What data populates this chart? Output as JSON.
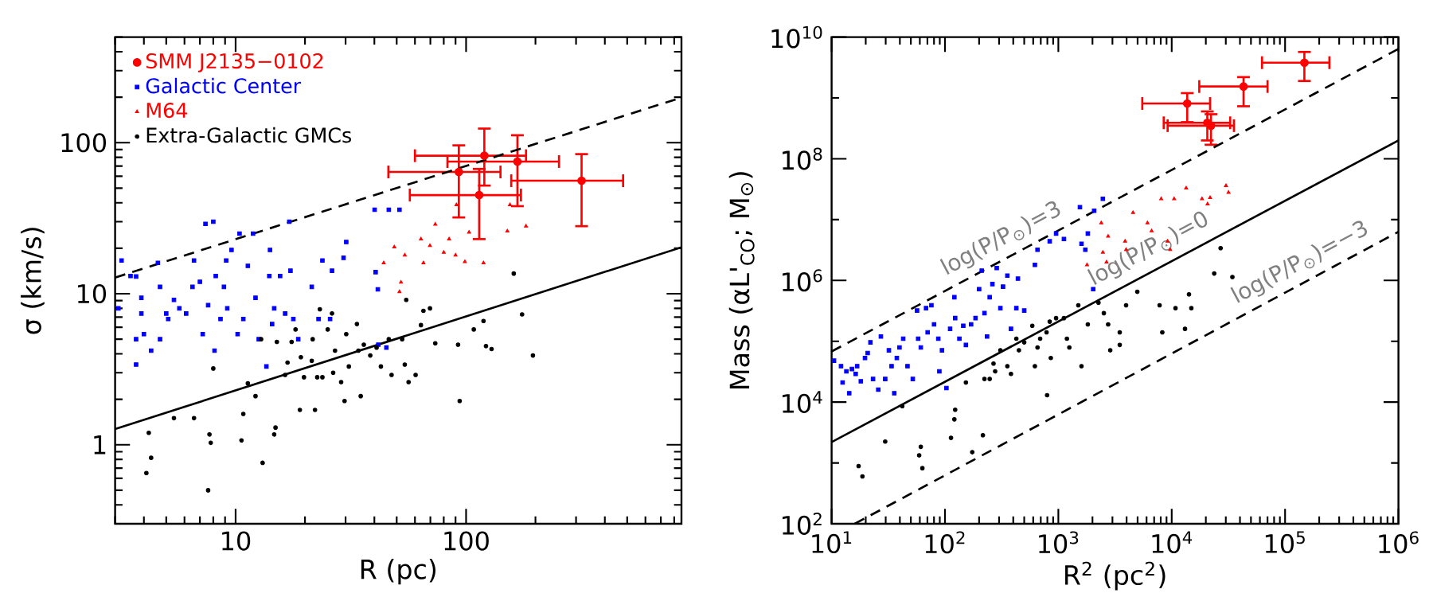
{
  "chart_data": [
    {
      "type": "scatter",
      "xlabel": "R (pc)",
      "ylabel": "σ (km/s)",
      "log": "xy",
      "xlim": [
        3,
        860
      ],
      "ylim": [
        0.3,
        500
      ],
      "xticks": [
        {
          "value": 3,
          "label": null
        },
        {
          "value": 4,
          "label": null
        },
        {
          "value": 5,
          "label": null
        },
        {
          "value": 6,
          "label": null
        },
        {
          "value": 7,
          "label": null
        },
        {
          "value": 8,
          "label": null
        },
        {
          "value": 9,
          "label": null
        },
        10,
        {
          "value": 20,
          "label": null
        },
        {
          "value": 30,
          "label": null
        },
        {
          "value": 40,
          "label": null
        },
        {
          "value": 50,
          "label": null
        },
        {
          "value": 60,
          "label": null
        },
        {
          "value": 70,
          "label": null
        },
        {
          "value": 80,
          "label": null
        },
        {
          "value": 90,
          "label": null
        },
        100,
        {
          "value": 200,
          "label": null
        },
        {
          "value": 300,
          "label": null
        },
        {
          "value": 400,
          "label": null
        },
        {
          "value": 500,
          "label": null
        },
        {
          "value": 600,
          "label": null
        },
        {
          "value": 700,
          "label": null
        },
        {
          "value": 800,
          "label": null
        }
      ],
      "yticks": [
        {
          "value": 0.3,
          "label": null
        },
        {
          "value": 0.4,
          "label": null
        },
        {
          "value": 0.5,
          "label": null
        },
        {
          "value": 0.6,
          "label": null
        },
        {
          "value": 0.7,
          "label": null
        },
        {
          "value": 0.8,
          "label": null
        },
        {
          "value": 0.9,
          "label": null
        },
        1,
        {
          "value": 2,
          "label": null
        },
        {
          "value": 3,
          "label": null
        },
        {
          "value": 4,
          "label": null
        },
        {
          "value": 5,
          "label": null
        },
        {
          "value": 6,
          "label": null
        },
        {
          "value": 7,
          "label": null
        },
        {
          "value": 8,
          "label": null
        },
        {
          "value": 9,
          "label": null
        },
        10,
        {
          "value": 20,
          "label": null
        },
        {
          "value": 30,
          "label": null
        },
        {
          "value": 40,
          "label": null
        },
        {
          "value": 50,
          "label": null
        },
        {
          "value": 60,
          "label": null
        },
        {
          "value": 70,
          "label": null
        },
        {
          "value": 80,
          "label": null
        },
        {
          "value": 90,
          "label": null
        },
        100,
        {
          "value": 200,
          "label": null
        },
        {
          "value": 300,
          "label": null
        },
        {
          "value": 400,
          "label": null
        },
        {
          "value": 500,
          "label": null
        }
      ],
      "legend": "top left",
      "series": [
        {
          "name": "SMM J2135−0102",
          "color": "#ff0000",
          "marker": "circle",
          "x": [
            93,
            120,
            167,
            114,
            317
          ],
          "values": [
            64,
            82,
            75,
            45,
            56
          ],
          "xerrors": [
            [
              46,
              141
            ],
            [
              60,
              182
            ],
            [
              83,
              253
            ],
            [
              57,
              173
            ],
            [
              157,
              480
            ]
          ],
          "errors": [
            [
              32,
              96
            ],
            [
              52,
              124
            ],
            [
              38,
              112
            ],
            [
              23,
              67
            ],
            [
              28,
              84
            ]
          ]
        },
        {
          "name": "Galactic Center",
          "color": "#0000ff",
          "marker": "square",
          "x": [
            3.2,
            3.1,
            3.5,
            3.7,
            3.9,
            3.9,
            3.7,
            3.7,
            4.0,
            4.3,
            4.6,
            4.7,
            4.7,
            5.0,
            5.1,
            5.4,
            5.7,
            6.1,
            6.5,
            6.6,
            7.0,
            7.2,
            7.4,
            7.6,
            8.0,
            8.1,
            8.2,
            8.6,
            8.9,
            9.1,
            9.2,
            9.6,
            10.2,
            10.4,
            10.8,
            11.3,
            11.9,
            12.2,
            12.6,
            13.6,
            14,
            14.1,
            14.4,
            14.7,
            15.6,
            16.4,
            17.1,
            17.3,
            17.8,
            18.7,
            21.4,
            22.9,
            23.8,
            25.7,
            26.2,
            30.2,
            29.4,
            40.1,
            40.5,
            41.4,
            46.2,
            51.4,
            41.6,
            45.1
          ],
          "values": [
            16.6,
            8.0,
            13.1,
            13,
            9.4,
            7.4,
            5.0,
            3.4,
            5.4,
            4.2,
            16,
            11.1,
            5.0,
            7.4,
            6.8,
            9.1,
            8.0,
            7.4,
            11.1,
            16.6,
            12,
            5.4,
            29,
            8.4,
            30,
            4.2,
            13.1,
            6.8,
            11.1,
            16.6,
            8.0,
            19.5,
            5.4,
            25,
            6.8,
            15.3,
            25,
            9.4,
            5.0,
            3.3,
            13.1,
            19.5,
            6.3,
            8.0,
            13.1,
            7.4,
            30,
            14.2,
            6.8,
            5.0,
            11.1,
            6.8,
            16.6,
            6.8,
            14.2,
            22,
            17.3,
            36,
            13.9,
            10.7,
            36,
            36,
            4.6,
            4.4
          ]
        },
        {
          "name": "M64",
          "color": "#ff0000",
          "marker": "triangle",
          "x": [
            43.9,
            48.8,
            52.2,
            51.4,
            54.2,
            63.7,
            65.3,
            69.7,
            73.5,
            80,
            84.4,
            90,
            90.8,
            98.8,
            103,
            119,
            151,
            155,
            166,
            182
          ],
          "values": [
            16,
            20.4,
            11.9,
            10.3,
            18,
            23,
            16,
            20.8,
            28.8,
            18.8,
            23,
            18,
            38.8,
            16.3,
            25.5,
            16,
            26,
            38.8,
            null,
            28
          ]
        },
        {
          "name": "Extra-Galactic GMCs",
          "color": "#000000",
          "marker": "circle",
          "x": [
            4.1,
            4.2,
            4.3,
            5.4,
            6.6,
            7.6,
            7.7,
            7.8,
            8.0,
            10.6,
            10.8,
            11.3,
            12.2,
            12.9,
            13.1,
            14.7,
            14.9,
            15.1,
            16.4,
            16.8,
            17.5,
            18.2,
            19.2,
            19,
            19.8,
            21.4,
            21.6,
            22.1,
            22.6,
            23.2,
            23.8,
            25.1,
            26.2,
            26.5,
            27,
            28.7,
            29.7,
            30.2,
            31,
            33.6,
            34.1,
            34.9,
            36,
            38.4,
            40.9,
            42.7,
            46.2,
            47.5,
            52.8,
            54.2,
            56.3,
            60.4,
            63.7,
            65.3,
            69.7,
            73.5,
            92.3,
            93.8,
            108,
            119,
            122,
            129,
            161,
            175,
            195,
            55
          ],
          "values": [
            0.65,
            1.2,
            0.82,
            1.5,
            1.5,
            0.5,
            1.17,
            1.03,
            3.2,
            1.07,
            1.6,
            2.55,
            2.1,
            5.0,
            0.76,
            1.17,
            1.3,
            4.8,
            2.9,
            3.5,
            4.8,
            5.8,
            3.8,
            1.7,
            2.8,
            3.6,
            5.0,
            1.7,
            2.8,
            7.9,
            2.8,
            5.8,
            7.4,
            3.0,
            4.2,
            2.6,
            1.95,
            5.4,
            3.3,
            6.3,
            4.2,
            2.1,
            4.6,
            3.9,
            4.4,
            3.3,
            5.0,
            2.9,
            5.0,
            3.4,
            2.6,
            2.9,
            6.2,
            7.7,
            8.0,
            4.7,
            4.6,
            1.95,
            5.8,
            6.6,
            4.5,
            4.3,
            13.6,
            7.3,
            3.9,
            9.1
          ]
        },
        {
          "type": "line",
          "color": "#000000",
          "line_style": "dashed",
          "x": [
            3,
            860
          ],
          "values": [
            12.8,
            199
          ]
        },
        {
          "type": "line",
          "color": "#000000",
          "line_style": "solid",
          "x": [
            3,
            860
          ],
          "values": [
            1.27,
            20.3
          ]
        }
      ]
    },
    {
      "type": "scatter",
      "xlabel": "R$^{2}$ (pc$^{2}$)",
      "ylabel": "Mass (αL'$_{CO}$; M$_{⊙}$)",
      "log": "xy",
      "xlim": [
        10,
        1000000
      ],
      "ylim": [
        100,
        10000000000
      ],
      "xticks": [
        {
          "value": 10,
          "label": "10$^{1}$"
        },
        {
          "value": 20,
          "label": null
        },
        {
          "value": 30,
          "label": null
        },
        {
          "value": 40,
          "label": null
        },
        {
          "value": 50,
          "label": null
        },
        {
          "value": 60,
          "label": null
        },
        {
          "value": 70,
          "label": null
        },
        {
          "value": 80,
          "label": null
        },
        {
          "value": 90,
          "label": null
        },
        {
          "value": 100,
          "label": "10$^{2}$"
        },
        {
          "value": 200,
          "label": null
        },
        {
          "value": 300,
          "label": null
        },
        {
          "value": 400,
          "label": null
        },
        {
          "value": 500,
          "label": null
        },
        {
          "value": 600,
          "label": null
        },
        {
          "value": 700,
          "label": null
        },
        {
          "value": 800,
          "label": null
        },
        {
          "value": 900,
          "label": null
        },
        {
          "value": 1000,
          "label": "10$^{3}$"
        },
        {
          "value": 2000,
          "label": null
        },
        {
          "value": 3000,
          "label": null
        },
        {
          "value": 4000,
          "label": null
        },
        {
          "value": 5000,
          "label": null
        },
        {
          "value": 6000,
          "label": null
        },
        {
          "value": 7000,
          "label": null
        },
        {
          "value": 8000,
          "label": null
        },
        {
          "value": 9000,
          "label": null
        },
        {
          "value": 10000,
          "label": "10$^{4}$"
        },
        {
          "value": 20000,
          "label": null
        },
        {
          "value": 30000,
          "label": null
        },
        {
          "value": 40000,
          "label": null
        },
        {
          "value": 50000,
          "label": null
        },
        {
          "value": 60000,
          "label": null
        },
        {
          "value": 70000,
          "label": null
        },
        {
          "value": 80000,
          "label": null
        },
        {
          "value": 90000,
          "label": null
        },
        {
          "value": 100000,
          "label": "10$^{5}$"
        },
        {
          "value": 200000,
          "label": null
        },
        {
          "value": 300000,
          "label": null
        },
        {
          "value": 400000,
          "label": null
        },
        {
          "value": 500000,
          "label": null
        },
        {
          "value": 600000,
          "label": null
        },
        {
          "value": 700000,
          "label": null
        },
        {
          "value": 800000,
          "label": null
        },
        {
          "value": 900000,
          "label": null
        },
        {
          "value": 1000000,
          "label": "10$^{6}$"
        }
      ],
      "yticks": [
        {
          "value": 100,
          "label": "10$^{2}$"
        },
        {
          "value": 1000,
          "label": null
        },
        {
          "value": 10000,
          "label": "10$^{4}$"
        },
        {
          "value": 100000,
          "label": null
        },
        {
          "value": 1000000,
          "label": "10$^{6}$"
        },
        {
          "value": 10000000,
          "label": null
        },
        {
          "value": 100000000,
          "label": "10$^{8}$"
        },
        {
          "value": 1000000000,
          "label": null
        },
        {
          "value": 10000000000,
          "label": "10$^{10}$"
        }
      ],
      "annotations": [
        "log(P/P$_{⊙}$)=3",
        "log(P/P$_{⊙}$)=0",
        "log(P/P$_{⊙}$)=−3"
      ],
      "series": [
        {
          "color": "#ff0000",
          "marker": "circle",
          "x": [
            13700,
            43000,
            148000,
            20600,
            22200
          ],
          "values": [
            810000000.0,
            1540000000.0,
            3800000000.0,
            390000000.0,
            350000000.0
          ],
          "xerrors": [
            [
              5500,
              21800
            ],
            [
              17500,
              70000
            ],
            [
              62600,
              246000
            ],
            [
              8500,
              32800
            ],
            [
              9200,
              35400
            ]
          ],
          "errors": [
            [
              400000000.0,
              1200000000.0
            ],
            [
              730000000.0,
              2200000000.0
            ],
            [
              1900000000.0,
              5700000000.0
            ],
            [
              200000000.0,
              600000000.0
            ],
            [
              170000000.0,
              540000000.0
            ]
          ]
        },
        {
          "color": "#0000ff",
          "marker": "square",
          "x": [
            10.5,
            12.1,
            12.5,
            13.5,
            14.3,
            15.1,
            16.3,
            16.8,
            18.1,
            19.7,
            20.8,
            22,
            23.2,
            25.8,
            27.2,
            29.7,
            32,
            33.8,
            35.7,
            37.6,
            39.7,
            42.8,
            46.7,
            52,
            56.7,
            58,
            61.2,
            68.1,
            70.3,
            75.9,
            80.1,
            87.3,
            89.2,
            94.1,
            103,
            111,
            121,
            123,
            134,
            145,
            153,
            170,
            186,
            200,
            211,
            223,
            235,
            248,
            262,
            286,
            308,
            325,
            426,
            440,
            500,
            621,
            655,
            839,
            955,
            1120,
            1550,
            1600,
            1730,
            1820,
            2030,
            2070,
            2470,
            355,
            382
          ],
          "values": [
            48000.0,
            39000.0,
            21000.0,
            32000.0,
            14000.0,
            35000.0,
            29000.0,
            39000.0,
            22000.0,
            53000.0,
            64000.0,
            96000.0,
            24000.0,
            16000.0,
            120000.0,
            24000.0,
            71000.0,
            39000.0,
            14000.0,
            53000.0,
            79000.0,
            110000.0,
            39000.0,
            24000.0,
            320000.0,
            110000.0,
            79000.0,
            350000.0,
            140000.0,
            390000.0,
            190000.0,
            110000.0,
            32000.0,
            71000.0,
            17000.0,
            160000.0,
            530000.0,
            240000.0,
            110000.0,
            180000.0,
            87000.0,
            190000.0,
            240000.0,
            720000.0,
            1450000.0,
            290000.0,
            120000.0,
            530000.0,
            870000.0,
            1600000.0,
            350000.0,
            790000.0,
            350000.0,
            1070000.0,
            320000.0,
            1800000.0,
            3200000.0,
            4400000.0,
            5900000.0,
            4800000.0,
            16000000.0,
            4000000.0,
            3200000.0,
            5900000.0,
            720000.0,
            14000000.0,
            22000000.0,
            1200000.0,
            160000.0
          ]
        },
        {
          "color": "#ff0000",
          "marker": "triangle",
          "x": [
            1790,
            2390,
            2470,
            2750,
            2660,
            3880,
            3960,
            4560,
            6110,
            6650,
            8070,
            9190,
            9700,
            10500,
            13400,
            18500,
            20700,
            21800,
            30100,
            31700
          ],
          "values": [
            1800000.0,
            8800000.0,
            2900000.0,
            5300000.0,
            2000000.0,
            4400000.0,
            3200000.0,
            13000000.0,
            8800000.0,
            6500000.0,
            22000000.0,
            4400000.0,
            3200000.0,
            22000000.0,
            33000000.0,
            22000000.0,
            18000000.0,
            23000000.0,
            36000000.0,
            28000000.0
          ]
        },
        {
          "color": "#000000",
          "marker": "circle",
          "x": [
            17.3,
            18.7,
            29.7,
            42,
            59.2,
            61.2,
            63.2,
            113,
            121,
            123,
            174,
            216,
            153,
            223,
            248,
            268,
            277,
            308,
            355,
            382,
            426,
            449,
            500,
            589,
            621,
            655,
            691,
            787,
            839,
            858,
            955,
            1120,
            1190,
            1250,
            1500,
            1600,
            1820,
            2260,
            2520,
            2750,
            2870,
            3480,
            3480,
            3960,
            4970,
            7820,
            8260,
            10800,
            13100,
            14200,
            14900,
            23700,
            27000,
            34300,
            796
          ],
          "values": [
            890,
            600,
            2240,
            8600,
            1330,
            1840,
            820,
            2580,
            5200,
            7500,
            1500,
            2850,
            21000.0,
            24000.0,
            24000.0,
            43000.0,
            32000.0,
            71000.0,
            39000.0,
            29000.0,
            110000.0,
            71000.0,
            96000.0,
            180000.0,
            39000.0,
            79000.0,
            110000.0,
            140000.0,
            210000.0,
            53000.0,
            240000.0,
            240000.0,
            110000.0,
            79000.0,
            390000.0,
            39000.0,
            190000.0,
            430000.0,
            290000.0,
            190000.0,
            71000.0,
            140000.0,
            87000.0,
            390000.0,
            650000.0,
            390000.0,
            140000.0,
            350000.0,
            160000.0,
            590000.0,
            350000.0,
            1300000.0,
            3400000.0,
            1140000.0,
            13000.0
          ]
        },
        {
          "type": "line",
          "color": "#000000",
          "line_style": "dashed",
          "x": [
            10,
            1000000
          ],
          "values": [
            68000.0,
            6400000000.0
          ]
        },
        {
          "type": "line",
          "color": "#000000",
          "line_style": "solid",
          "x": [
            10,
            1000000
          ],
          "values": [
            2200.0,
            200000000.0
          ]
        },
        {
          "type": "line",
          "color": "#000000",
          "line_style": "dashed",
          "x": [
            16,
            1000000
          ],
          "values": [
            100,
            6300000.0
          ]
        }
      ]
    }
  ]
}
